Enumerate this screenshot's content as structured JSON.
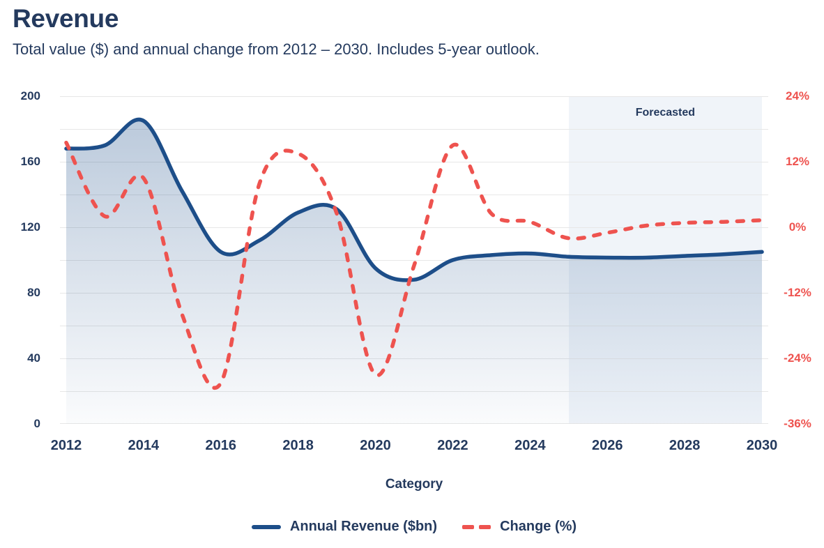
{
  "header": {
    "title": "Revenue",
    "subtitle": "Total value ($) and annual change from 2012 – 2030. Includes 5-year outlook."
  },
  "colors": {
    "text_navy": "#243a5e",
    "revenue_line": "#1d4e89",
    "change_line": "#ee534f",
    "gridline": "#e7e7e7",
    "forecast_band": "#f0f4f9"
  },
  "chart_data": {
    "type": "line",
    "title": "Revenue",
    "x": [
      2012,
      2013,
      2014,
      2015,
      2016,
      2017,
      2018,
      2019,
      2020,
      2021,
      2022,
      2023,
      2024,
      2025,
      2026,
      2027,
      2028,
      2029,
      2030
    ],
    "series": [
      {
        "name": "Annual Revenue ($bn)",
        "axis": "left",
        "style": "solid",
        "color": "#1d4e89",
        "area_fill": true,
        "values": [
          168,
          170,
          185,
          142,
          105,
          112,
          129,
          131,
          95,
          88,
          100,
          103,
          104,
          102,
          101.5,
          101.5,
          102.5,
          103.5,
          105
        ]
      },
      {
        "name": "Change (%)",
        "axis": "right",
        "style": "dashed",
        "color": "#ee534f",
        "area_fill": false,
        "values": [
          15.5,
          2,
          9,
          -16,
          -28.5,
          8,
          13.5,
          2.5,
          -27,
          -7,
          15,
          2.5,
          1,
          -2,
          -1,
          0.3,
          0.8,
          1,
          1.3
        ]
      }
    ],
    "left_axis": {
      "min": 0,
      "max": 200,
      "grid_step": 20,
      "ticks": [
        "200",
        "160",
        "120",
        "80",
        "40",
        "0"
      ]
    },
    "right_axis": {
      "min": -36,
      "max": 24,
      "ticks": [
        "24%",
        "12%",
        "0%",
        "-12%",
        "-24%",
        "-36%"
      ]
    },
    "x_axis": {
      "title": "Category",
      "tick_labels": [
        "2012",
        "2014",
        "2016",
        "2018",
        "2020",
        "2022",
        "2024",
        "2026",
        "2028",
        "2030"
      ]
    },
    "forecast": {
      "label": "Forecasted",
      "from": 2025,
      "to": 2030
    },
    "legend": {
      "position": "bottom",
      "entries": [
        "Annual Revenue ($bn)",
        "Change (%)"
      ]
    },
    "grid": "horizontal-only"
  }
}
